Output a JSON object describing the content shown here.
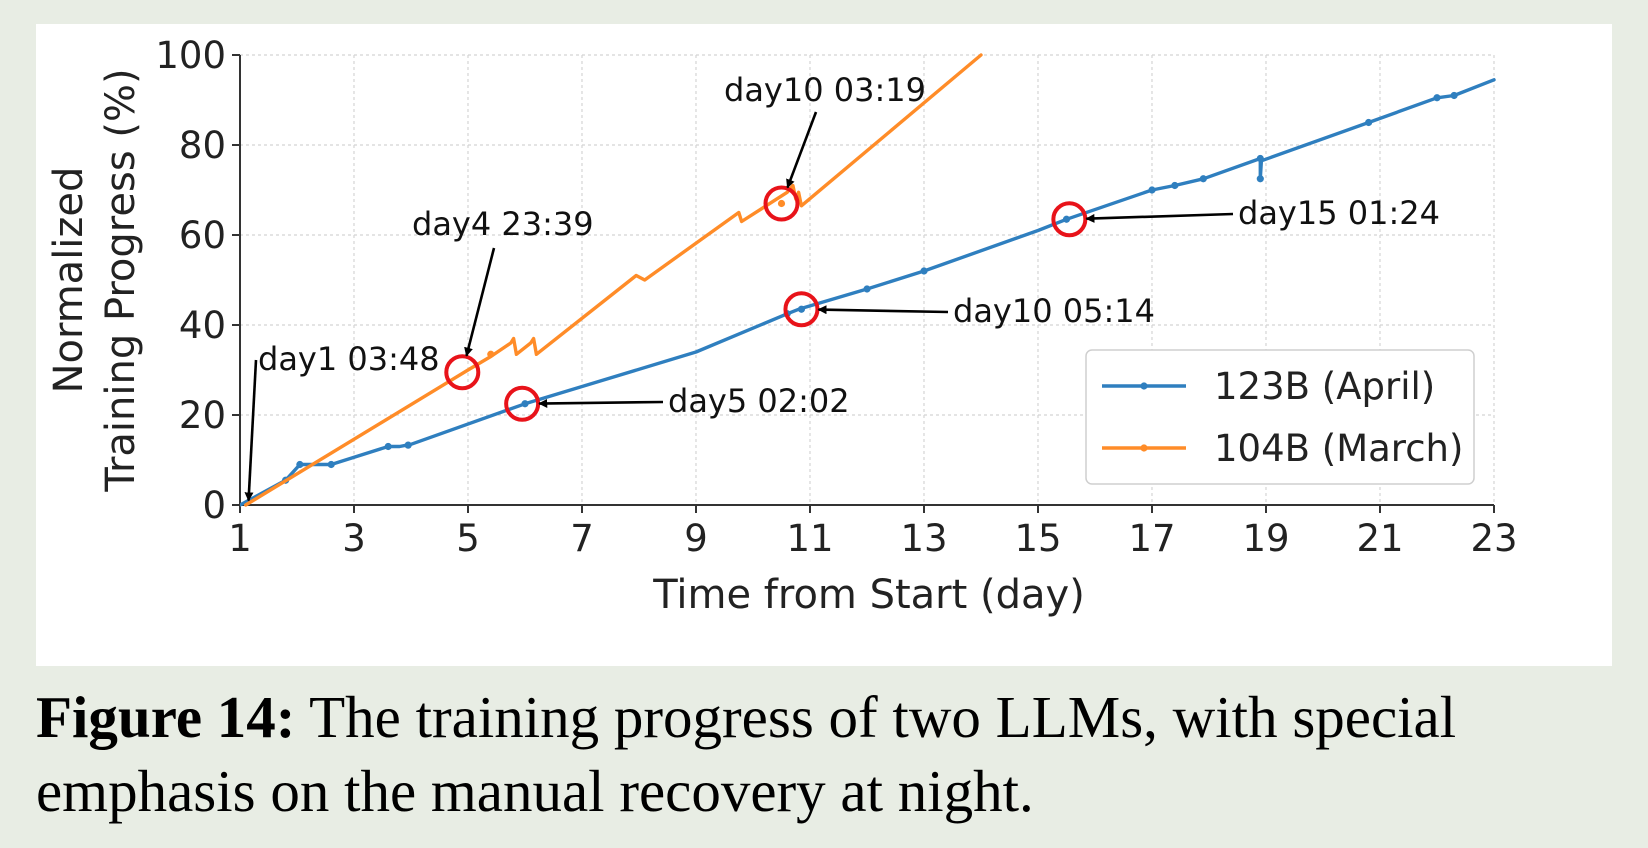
{
  "chart_data": {
    "type": "line",
    "xlabel": "Time from Start (day)",
    "ylabel_lines": [
      "Normalized",
      "Training Progress (%)"
    ],
    "xlim": [
      1,
      23
    ],
    "ylim": [
      0,
      100
    ],
    "x_ticks": [
      "1",
      "3",
      "5",
      "7",
      "9",
      "11",
      "13",
      "15",
      "17",
      "19",
      "21",
      "23"
    ],
    "y_ticks": [
      "0",
      "20",
      "40",
      "60",
      "80",
      "100"
    ],
    "grid": true,
    "legend_position": "lower-right",
    "series": [
      {
        "name": "123B (April)",
        "color": "#2f7fbf",
        "points": [
          [
            1.0,
            0
          ],
          [
            1.8,
            5.5
          ],
          [
            2.05,
            9
          ],
          [
            2.6,
            9
          ],
          [
            3.6,
            13
          ],
          [
            3.8,
            13
          ],
          [
            4.0,
            13.5
          ],
          [
            6.0,
            22.5
          ],
          [
            9.0,
            34
          ],
          [
            10.6,
            42.5
          ],
          [
            10.8,
            43.5
          ],
          [
            12.0,
            48
          ],
          [
            13.0,
            52
          ],
          [
            15.0,
            61
          ],
          [
            15.5,
            63.5
          ],
          [
            17.0,
            70
          ],
          [
            17.4,
            71
          ],
          [
            17.9,
            72.5
          ],
          [
            18.9,
            77
          ],
          [
            18.9,
            72.5
          ],
          [
            18.92,
            76.5
          ],
          [
            20.8,
            85
          ],
          [
            22.0,
            90.5
          ],
          [
            22.3,
            91
          ],
          [
            23.0,
            94.5
          ]
        ],
        "markers": [
          [
            1.8,
            5.5
          ],
          [
            2.05,
            9
          ],
          [
            2.6,
            9
          ],
          [
            3.6,
            13
          ],
          [
            3.95,
            13.3
          ],
          [
            6.0,
            22.5
          ],
          [
            10.6,
            42.5
          ],
          [
            10.85,
            43.5
          ],
          [
            12.0,
            48
          ],
          [
            13.0,
            52
          ],
          [
            15.5,
            63.5
          ],
          [
            17.0,
            70
          ],
          [
            17.4,
            71
          ],
          [
            17.9,
            72.5
          ],
          [
            18.9,
            77
          ],
          [
            18.9,
            72.5
          ],
          [
            20.8,
            85
          ],
          [
            22.0,
            90.5
          ],
          [
            22.3,
            91
          ]
        ]
      },
      {
        "name": "104B (March)",
        "color": "#ff8c28",
        "points": [
          [
            1.1,
            0
          ],
          [
            5.0,
            30
          ],
          [
            5.4,
            33
          ],
          [
            5.75,
            36
          ],
          [
            5.8,
            37
          ],
          [
            5.85,
            33.5
          ],
          [
            6.1,
            36
          ],
          [
            6.15,
            37
          ],
          [
            6.2,
            33.5
          ],
          [
            7.95,
            51
          ],
          [
            8.1,
            50
          ],
          [
            9.75,
            65
          ],
          [
            9.8,
            63
          ],
          [
            10.6,
            69.5
          ],
          [
            10.7,
            71
          ],
          [
            10.75,
            68
          ],
          [
            10.8,
            69.5
          ],
          [
            10.85,
            66.5
          ],
          [
            14.0,
            100
          ]
        ],
        "markers": [
          [
            5.4,
            33.5
          ],
          [
            10.5,
            67
          ]
        ]
      }
    ],
    "annotations": [
      {
        "text": "day1 03:48",
        "target": [
          1.15,
          1.0
        ],
        "circled": false
      },
      {
        "text": "day4 23:39",
        "target": [
          4.9,
          29.5
        ],
        "circled": true
      },
      {
        "text": "day5 02:02",
        "target": [
          5.95,
          22.5
        ],
        "circled": true
      },
      {
        "text": "day10 03:19",
        "target": [
          10.5,
          67.0
        ],
        "circled": true
      },
      {
        "text": "day10 05:14",
        "target": [
          10.85,
          43.5
        ],
        "circled": true
      },
      {
        "text": "day15 01:24",
        "target": [
          15.55,
          63.5
        ],
        "circled": true
      }
    ]
  },
  "caption": {
    "label": "Figure 14:",
    "line1": " The training progress of two LLMs, with special",
    "line2": "emphasis on the manual recovery at night."
  }
}
